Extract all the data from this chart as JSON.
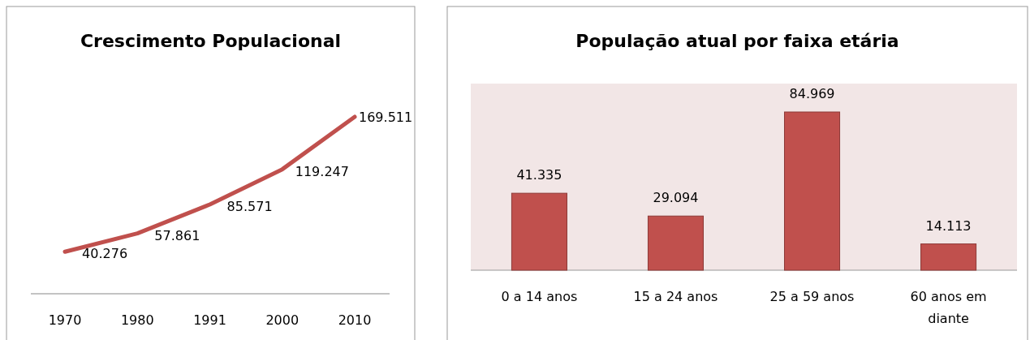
{
  "chart_data": [
    {
      "type": "line",
      "title": "Crescimento Populacional",
      "categories": [
        "1970",
        "1980",
        "1991",
        "2000",
        "2010"
      ],
      "values": [
        40276,
        57861,
        85571,
        119247,
        169511
      ],
      "color": "#c0504d",
      "value_labels": [
        "40.276",
        "57.861",
        "85.571",
        "119.247",
        "169.511"
      ],
      "marker": "none"
    },
    {
      "type": "bar",
      "title": "População atual por faixa etária",
      "categories": [
        "0 a 14 anos",
        "15 a 24 anos",
        "25 a 59 anos",
        "60 anos em diante"
      ],
      "values": [
        41335,
        29094,
        84969,
        14113
      ],
      "color": "#c0504d",
      "value_labels": [
        "41.335",
        "29.094",
        "84.969",
        "14.113"
      ]
    }
  ]
}
